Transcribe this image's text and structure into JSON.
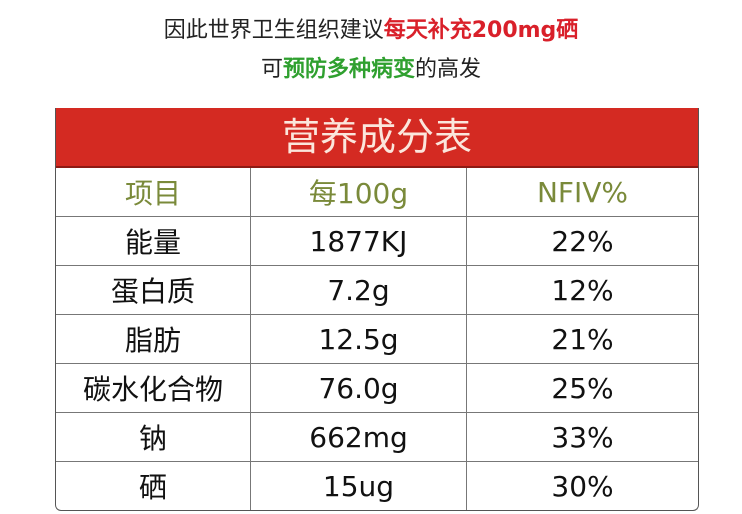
{
  "intro": {
    "line1_normal": "因此世界卫生组织建议",
    "line1_highlight": "每天补充200mg硒",
    "line2_prefix": "可",
    "line2_highlight": "预防多种病变",
    "line2_suffix": "的高发"
  },
  "table": {
    "title": "营养成分表",
    "headers": [
      "项目",
      "每100g",
      "NFIV%"
    ],
    "rows": [
      [
        "能量",
        "1877KJ",
        "22%"
      ],
      [
        "蛋白质",
        "7.2g",
        "12%"
      ],
      [
        "脂肪",
        "12.5g",
        "21%"
      ],
      [
        "碳水化合物",
        "76.0g",
        "25%"
      ],
      [
        "钠",
        "662mg",
        "33%"
      ],
      [
        "硒",
        "15ug",
        "30%"
      ]
    ]
  },
  "colors": {
    "title_bg": "#d42a22",
    "highlight_red": "#d9202a",
    "highlight_green": "#2fa02f",
    "header_text": "#7a8a3a"
  }
}
